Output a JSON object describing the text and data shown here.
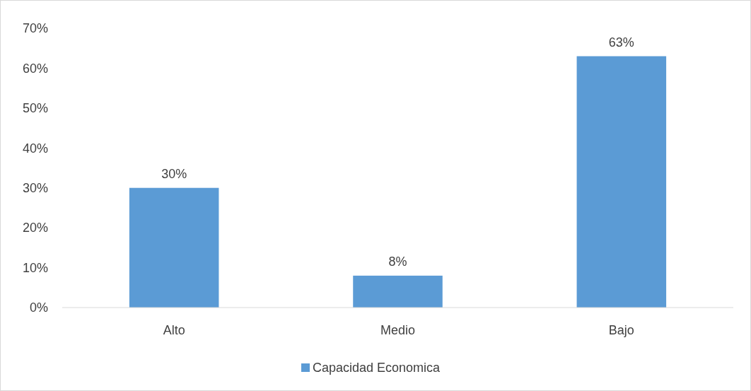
{
  "chart_data": {
    "type": "bar",
    "categories": [
      "Alto",
      "Medio",
      "Bajo"
    ],
    "series": [
      {
        "name": "Capacidad Economica",
        "color": "#5b9bd5",
        "values": [
          30,
          8,
          63
        ]
      }
    ],
    "ylim": [
      0,
      70
    ],
    "yticks": [
      {
        "value": 0,
        "label": "0%"
      },
      {
        "value": 10,
        "label": "10%"
      },
      {
        "value": 20,
        "label": "20%"
      },
      {
        "value": 30,
        "label": "30%"
      },
      {
        "value": 40,
        "label": "40%"
      },
      {
        "value": 50,
        "label": "50%"
      },
      {
        "value": 60,
        "label": "60%"
      },
      {
        "value": 70,
        "label": "70%"
      }
    ],
    "value_labels": [
      "30%",
      "8%",
      "63%"
    ],
    "legend": "bottom"
  }
}
